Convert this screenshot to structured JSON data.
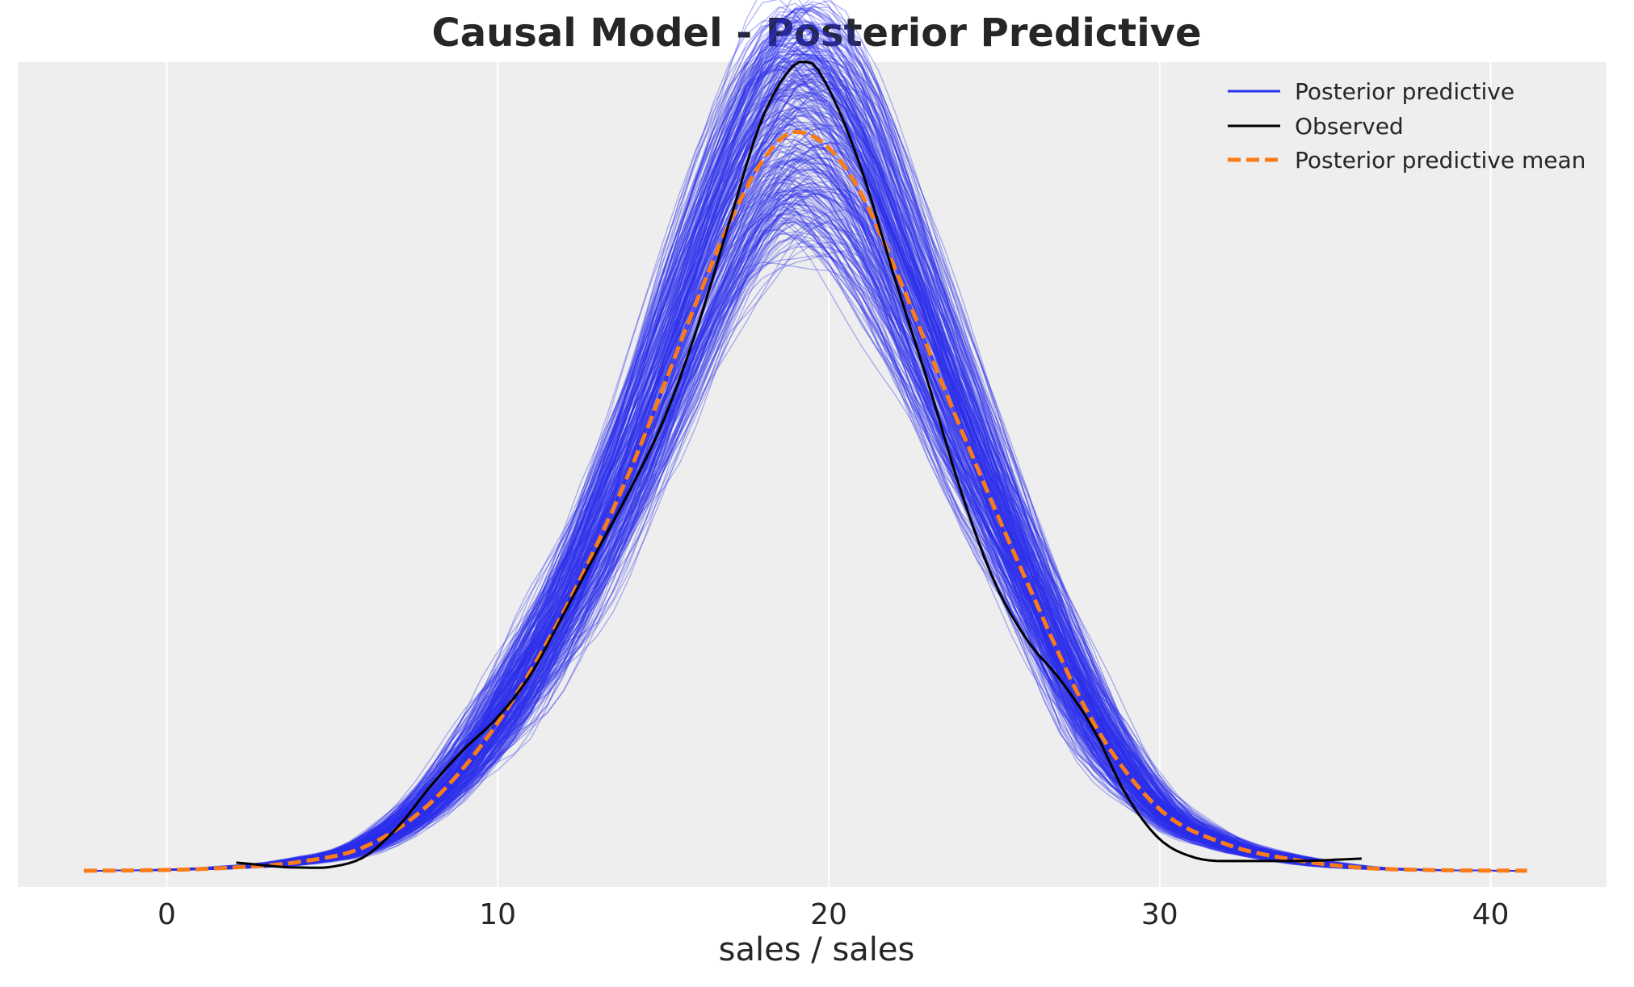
{
  "chart_data": {
    "type": "line",
    "title": "Causal Model - Posterior Predictive",
    "xlabel": "sales / sales",
    "ylabel": "",
    "xlim": [
      -4.5,
      43.5
    ],
    "ylim": [
      -0.002,
      0.1
    ],
    "xticks": [
      0,
      10,
      20,
      30,
      40
    ],
    "xtick_labels": [
      "0",
      "10",
      "20",
      "30",
      "40"
    ],
    "grid": "vertical",
    "legend_position": "top-right",
    "colors": {
      "background": "#eeeeee",
      "posterior": "#2a2eec",
      "observed": "#000000",
      "mean": "#fa7c17"
    },
    "series": [
      {
        "name": "Posterior predictive",
        "style": "thin translucent lines (many draws)",
        "draw_count": 300,
        "x_range": [
          -2.5,
          41.2
        ]
      },
      {
        "name": "Observed",
        "style": "solid",
        "x": [
          2.1,
          4,
          5,
          6,
          7,
          8,
          9,
          10,
          11,
          12,
          13,
          14,
          15,
          16,
          17,
          18,
          19,
          19.4,
          20,
          21,
          22,
          23,
          24,
          25,
          26,
          27,
          28,
          29,
          30,
          31,
          32,
          34,
          36.1
        ],
        "y": [
          0.001,
          0.0004,
          0.0005,
          0.0018,
          0.0055,
          0.0106,
          0.0151,
          0.019,
          0.0243,
          0.0318,
          0.0395,
          0.0471,
          0.0556,
          0.0668,
          0.0802,
          0.0931,
          0.0998,
          0.1,
          0.0967,
          0.0866,
          0.0732,
          0.0604,
          0.0469,
          0.0358,
          0.0285,
          0.0236,
          0.0175,
          0.0093,
          0.0039,
          0.0017,
          0.0012,
          0.0012,
          0.0015
        ]
      },
      {
        "name": "Posterior predictive mean",
        "style": "dashed",
        "x": [
          -2.5,
          0,
          2,
          4,
          6,
          8,
          10,
          12,
          14,
          16,
          17,
          18,
          19,
          20,
          21,
          22,
          24,
          26,
          28,
          30,
          32,
          34,
          36,
          38,
          41.2
        ],
        "y": [
          0,
          0.0001,
          0.0004,
          0.0011,
          0.003,
          0.0085,
          0.0183,
          0.0321,
          0.0495,
          0.0703,
          0.0801,
          0.0878,
          0.0914,
          0.0894,
          0.0836,
          0.0745,
          0.0546,
          0.0356,
          0.0183,
          0.0076,
          0.0033,
          0.0014,
          0.0004,
          0.0001,
          0
        ]
      }
    ]
  }
}
